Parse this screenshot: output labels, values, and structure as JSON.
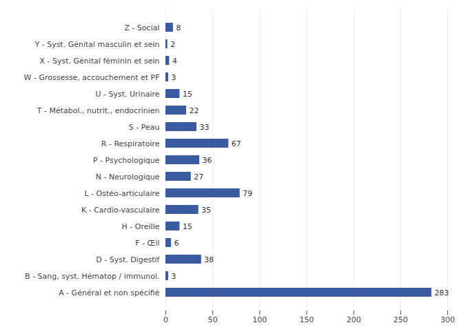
{
  "chart_data": {
    "type": "bar",
    "orientation": "horizontal",
    "categories": [
      "A - Général et non spécifié",
      "B - Sang, syst. Hématop / immunol.",
      "D - Syst. Digestif",
      "F - Œil",
      "H - Oreille",
      "K - Cardio-vasculaire",
      "L - Ostéo-articulaire",
      "N - Neurologique",
      "P - Psychologique",
      "R - Respiratoire",
      "S - Peau",
      "T - Métabol., nutrit., endocrinien",
      "U - Syst. Urinaire",
      "W - Grossesse, accouchement et PF",
      "X - Syst. Génital féminin et sein",
      "Y - Syst. Génital masculin et sein",
      "Z - Social"
    ],
    "values": [
      283,
      3,
      38,
      6,
      15,
      35,
      79,
      27,
      36,
      67,
      33,
      22,
      15,
      3,
      4,
      2,
      8
    ],
    "color": "#3A5BA0",
    "xlim": [
      0,
      300
    ],
    "xticks": [
      0,
      50,
      100,
      150,
      200,
      250,
      300
    ],
    "grid": true,
    "data_labels": true
  }
}
